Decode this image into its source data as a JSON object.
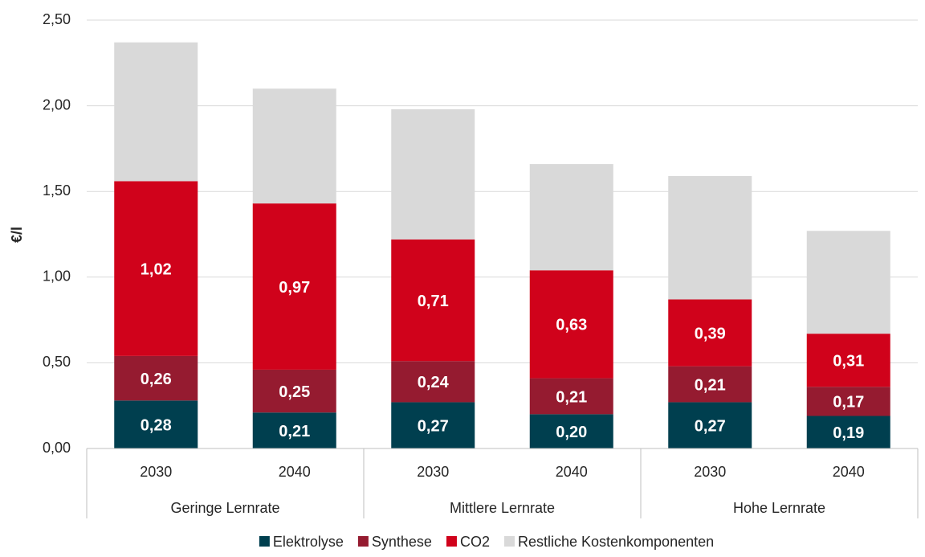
{
  "chart_data": {
    "type": "stacked_bar",
    "y_label": "€/l",
    "categories": [
      "2030",
      "2040",
      "2030",
      "2040",
      "2030",
      "2040"
    ],
    "groups": [
      "Geringe Lernrate",
      "Mittlere Lernrate",
      "Hohe Lernrate"
    ],
    "series": [
      {
        "name": "Elektrolyse",
        "color": "#003f4f",
        "values": [
          0.28,
          0.21,
          0.27,
          0.2,
          0.27,
          0.19
        ],
        "value_labels": [
          "0,28",
          "0,21",
          "0,27",
          "0,20",
          "0,27",
          "0,19"
        ]
      },
      {
        "name": "Synthese",
        "color": "#951b30",
        "values": [
          0.26,
          0.25,
          0.24,
          0.21,
          0.21,
          0.17
        ],
        "value_labels": [
          "0,26",
          "0,25",
          "0,24",
          "0,21",
          "0,21",
          "0,17"
        ]
      },
      {
        "name": "CO2",
        "color": "#d0021b",
        "values": [
          1.02,
          0.97,
          0.71,
          0.63,
          0.39,
          0.31
        ],
        "value_labels": [
          "1,02",
          "0,97",
          "0,71",
          "0,63",
          "0,39",
          "0,31"
        ]
      },
      {
        "name": "Restliche Kostenkomponenten",
        "color": "#d9d9d9",
        "values": [
          0.81,
          0.67,
          0.76,
          0.62,
          0.72,
          0.6
        ]
      }
    ],
    "ylim": [
      0,
      2.5
    ],
    "yticks": [
      {
        "value": 0,
        "label": "0,00"
      },
      {
        "value": 0.5,
        "label": "0,50"
      },
      {
        "value": 1,
        "label": "1,00"
      },
      {
        "value": 1.5,
        "label": "1,50"
      },
      {
        "value": 2,
        "label": "2,00"
      },
      {
        "value": 2.5,
        "label": "2,50"
      }
    ],
    "grid": true
  }
}
